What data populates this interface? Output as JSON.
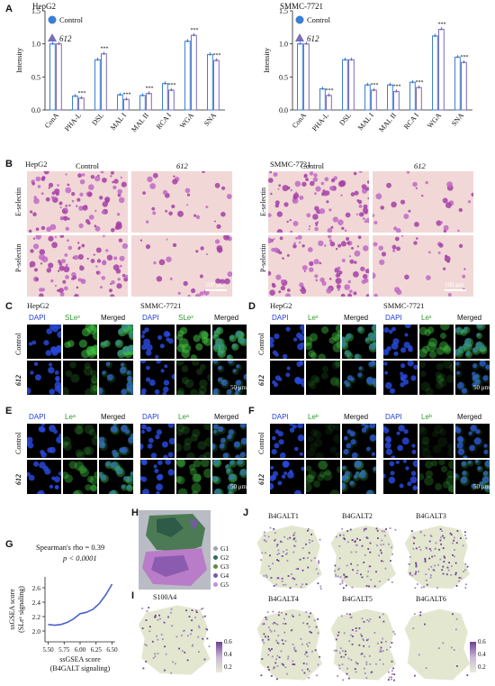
{
  "panels": {
    "A": "A",
    "B": "B",
    "C": "C",
    "D": "D",
    "E": "E",
    "F": "F",
    "G": "G",
    "H": "H",
    "I": "I",
    "J": "J"
  },
  "chart_data": [
    {
      "type": "bar",
      "title": "HepG2",
      "ylabel": "Intensity",
      "ylim": [
        0,
        1.5
      ],
      "yticks": [
        "0.0",
        "0.5",
        "1.0",
        "1.5"
      ],
      "categories": [
        "ConA",
        "PHA-L",
        "DSL",
        "MAL I",
        "MAL II",
        "RCA I",
        "WGA",
        "SNA"
      ],
      "series": [
        {
          "name": "Control",
          "values": [
            1.0,
            0.21,
            0.76,
            0.23,
            0.22,
            0.4,
            1.04,
            0.84
          ]
        },
        {
          "name": "612",
          "values": [
            1.0,
            0.18,
            0.85,
            0.16,
            0.25,
            0.3,
            1.13,
            0.75
          ]
        }
      ],
      "sig": [
        "",
        "***",
        "***",
        "***",
        "***",
        "***",
        "***",
        "***"
      ],
      "colors": {
        "control": "#3a7fd4",
        "treat": "#7b6bb8"
      }
    },
    {
      "type": "bar",
      "title": "SMMC-7721",
      "ylabel": "Intensity",
      "ylim": [
        0,
        1.5
      ],
      "yticks": [
        "0.0",
        "0.5",
        "1.0",
        "1.5"
      ],
      "categories": [
        "ConA",
        "PHA-L",
        "DSL",
        "MAL I",
        "MAL II",
        "RCA I",
        "WGA",
        "SNA"
      ],
      "series": [
        {
          "name": "Control",
          "values": [
            1.0,
            0.32,
            0.76,
            0.38,
            0.38,
            0.42,
            1.12,
            0.8
          ]
        },
        {
          "name": "612",
          "values": [
            1.0,
            0.22,
            0.76,
            0.3,
            0.28,
            0.34,
            1.22,
            0.72
          ]
        }
      ],
      "sig": [
        "",
        "***",
        "",
        "***",
        "***",
        "***",
        "***",
        "***"
      ],
      "colors": {
        "control": "#3a7fd4",
        "treat": "#7b6bb8"
      }
    },
    {
      "type": "line",
      "title": "",
      "annotation1": "Spearman's rho = 0.39",
      "annotation2": "p < 0.0001",
      "xlabel1": "ssGSEA score",
      "xlabel2": "(B4GALT signaling)",
      "ylabel1": "ssGSEA score",
      "ylabel2": "(SLeˣ signaling)",
      "xlim": [
        5.45,
        6.55
      ],
      "ylim": [
        1.85,
        2.75
      ],
      "xticks": [
        "5.50",
        "5.75",
        "6.00",
        "6.25",
        "6.50"
      ],
      "yticks": [
        "2.0",
        "2.2",
        "2.4",
        "2.6"
      ],
      "x": [
        5.5,
        5.6,
        5.7,
        5.8,
        5.9,
        6.0,
        6.1,
        6.2,
        6.3,
        6.4,
        6.5
      ],
      "y": [
        2.09,
        2.08,
        2.09,
        2.12,
        2.17,
        2.24,
        2.26,
        2.3,
        2.38,
        2.5,
        2.65
      ],
      "color": "#4b63c9"
    }
  ],
  "panelB": {
    "hepg2": "HepG2",
    "smmc": "SMMC-7721",
    "control": "Control",
    "treat": "612",
    "row1": "E-selectin",
    "row2": "P-selectin",
    "scale": "100 μm"
  },
  "panelC": {
    "hepg2": "HepG2",
    "smmc": "SMMC-7721",
    "dapi": "DAPI",
    "marker": "SLeˣ",
    "merged": "Merged",
    "row1": "Control",
    "row2": "612",
    "scale": "50 μm"
  },
  "panelD": {
    "hepg2": "HepG2",
    "smmc": "SMMC-7721",
    "dapi": "DAPI",
    "marker": "Leˣ",
    "merged": "Merged",
    "row1": "Control",
    "row2": "612",
    "scale": "50 μm"
  },
  "panelE": {
    "dapi": "DAPI",
    "marker": "Leᵃ",
    "merged": "Merged",
    "row1": "Control",
    "row2": "612",
    "scale": "50 μm"
  },
  "panelF": {
    "dapi": "DAPI",
    "marker": "Leᵇ",
    "merged": "Merged",
    "row1": "Control",
    "row2": "612",
    "scale": "50 μm"
  },
  "panelH": {
    "legend": [
      "G1",
      "G2",
      "G3",
      "G4",
      "G5"
    ],
    "colors": [
      "#9aa3b0",
      "#2e6b5c",
      "#5a8a4a",
      "#7a58a8",
      "#c48dd6"
    ]
  },
  "panelI": {
    "title": "S100A4"
  },
  "panelJ": {
    "titles": [
      "B4GALT1",
      "B4GALT2",
      "B4GALT3",
      "B4GALT4",
      "B4GALT5",
      "B4GALT6"
    ]
  },
  "colorbar": {
    "ticks": [
      "0.6",
      "0.4",
      "0.2"
    ]
  }
}
